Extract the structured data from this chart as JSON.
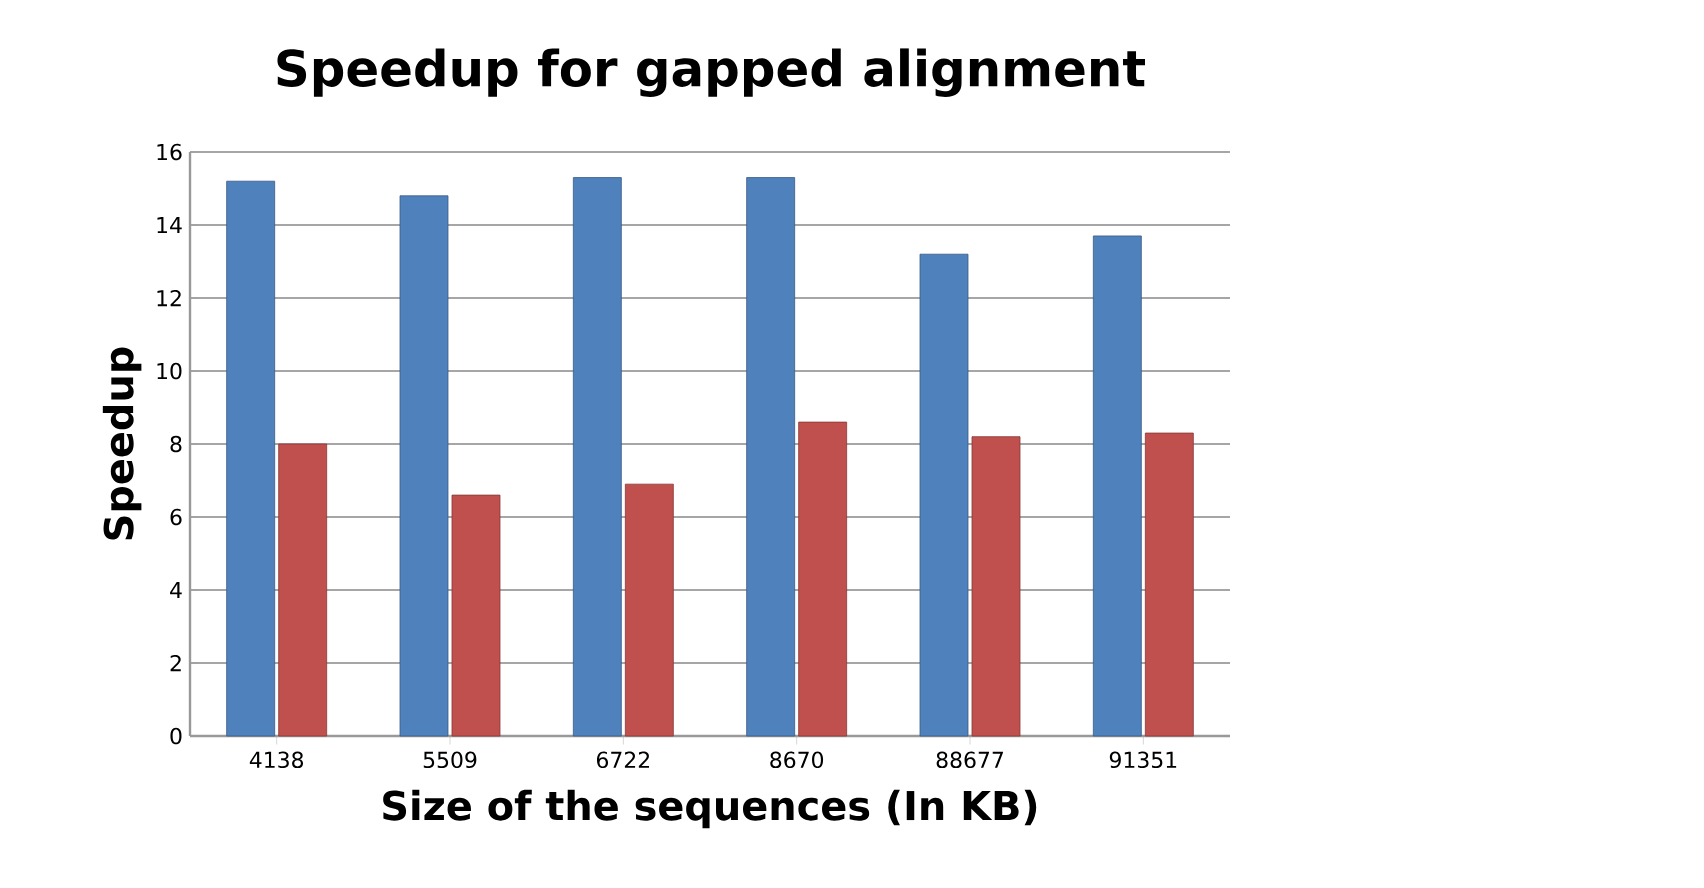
{
  "chart_data": {
    "type": "bar",
    "title": "Speedup for gapped alignment",
    "xlabel": "Size of the sequences (In KB)",
    "ylabel": "Speedup",
    "categories": [
      "4138",
      "5509",
      "6722",
      "8670",
      "88677",
      "91351"
    ],
    "series": [
      {
        "color": "#4f81bd",
        "values": [
          15.2,
          14.8,
          15.3,
          15.3,
          13.2,
          13.7
        ]
      },
      {
        "color": "#c0504d",
        "values": [
          8.0,
          6.6,
          6.9,
          8.6,
          8.2,
          8.3
        ]
      }
    ],
    "ylim": [
      0,
      16
    ],
    "yticks": [
      0,
      2,
      4,
      6,
      8,
      10,
      12,
      14,
      16
    ],
    "grid": "y"
  }
}
